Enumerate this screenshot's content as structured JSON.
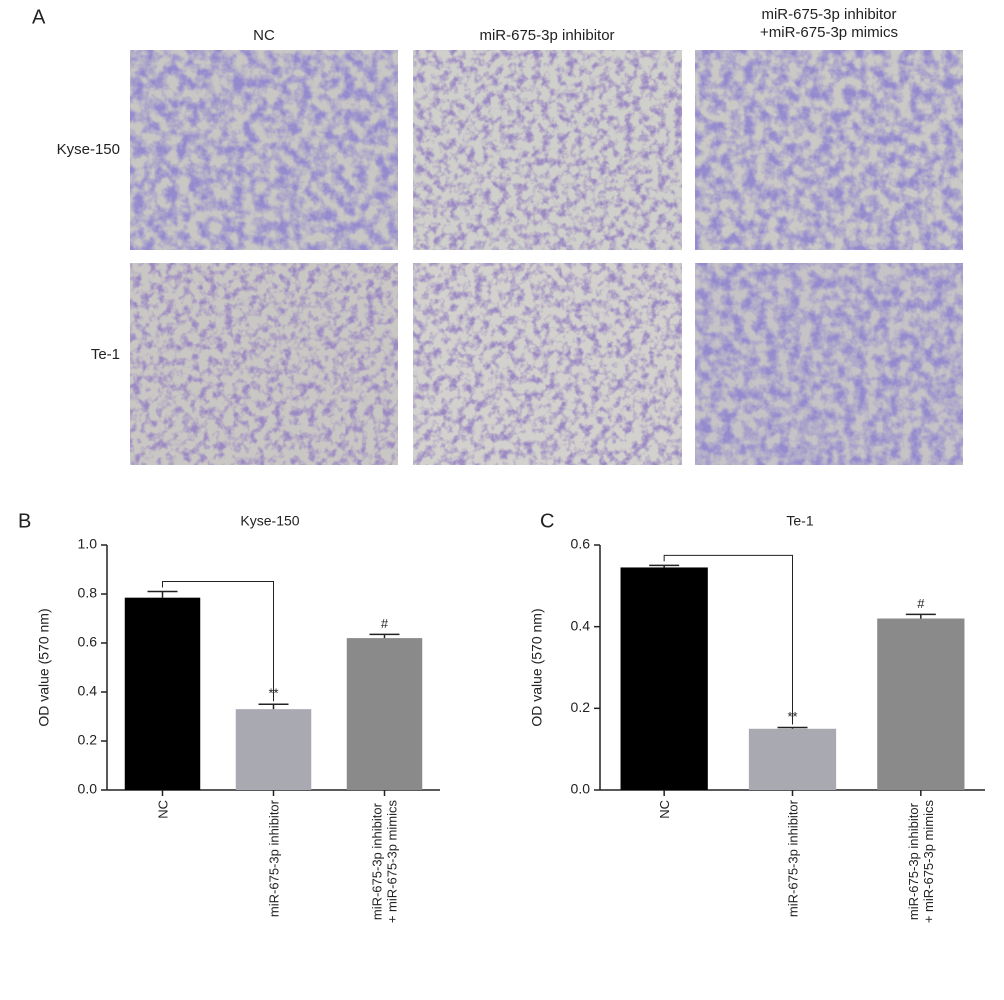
{
  "panel_a": {
    "label": "A",
    "columns": [
      "NC",
      "miR-675-3p inhibitor",
      "miR-675-3p inhibitor\n+miR-675-3p mimics"
    ],
    "rows": [
      "Kyse-150",
      "Te-1"
    ]
  },
  "chart_data": [
    {
      "type": "bar",
      "panel_label": "B",
      "title": "Kyse-150",
      "y_label": "OD value (570 nm)",
      "categories": [
        "NC",
        "miR-675-3p inhibitor",
        "miR-675-3p inhibitor\n+ miR-675-3p mimics"
      ],
      "values": [
        0.785,
        0.33,
        0.62
      ],
      "errors": [
        0.025,
        0.02,
        0.015
      ],
      "colors": [
        "#000000",
        "#a9a9b1",
        "#8a8a8a"
      ],
      "significance": [
        null,
        "**",
        "#"
      ],
      "ylim": [
        0,
        1.0
      ],
      "yticks": [
        {
          "value": 0,
          "label": "0.0"
        },
        0.2,
        0.4,
        0.6,
        0.8,
        {
          "value": 1.0,
          "label": "1.0"
        }
      ]
    },
    {
      "type": "bar",
      "panel_label": "C",
      "title": "Te-1",
      "y_label": "OD value (570 nm)",
      "categories": [
        "NC",
        "miR-675-3p inhibitor",
        "miR-675-3p inhibitor\n+ miR-675-3p mimics"
      ],
      "values": [
        0.545,
        0.15,
        0.42
      ],
      "errors": [
        0.005,
        0.003,
        0.01
      ],
      "colors": [
        "#000000",
        "#a9a9b1",
        "#8a8a8a"
      ],
      "significance": [
        null,
        "**",
        "#"
      ],
      "ylim": [
        0,
        0.6
      ],
      "yticks": [
        {
          "value": 0,
          "label": "0.0"
        },
        0.2,
        0.4,
        0.6
      ]
    }
  ]
}
